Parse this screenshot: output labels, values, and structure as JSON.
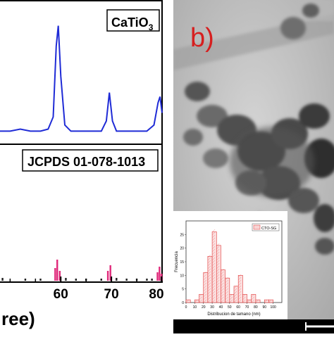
{
  "panel_a": {
    "top_label_base": "CaTiO",
    "top_label_sub": "3",
    "ref_label": "JCPDS 01-078-1013",
    "xlabel_fragment": "ree)"
  },
  "panel_b": {
    "label": "b)"
  },
  "chart_data": [
    {
      "type": "line",
      "name": "xrd-pattern",
      "x_range": [
        48,
        80
      ],
      "ticks": [
        60,
        70,
        80
      ],
      "x": [
        48,
        50,
        52,
        54,
        56,
        57.5,
        58.5,
        59.1,
        59.5,
        60.0,
        60.8,
        62,
        64,
        66,
        68,
        69.0,
        69.6,
        70.2,
        71,
        73,
        75,
        77,
        78.4,
        79.2,
        79.6,
        80
      ],
      "y": [
        3,
        3,
        4,
        3,
        3,
        4,
        10,
        45,
        55,
        30,
        6,
        3,
        3,
        3,
        3,
        8,
        22,
        8,
        3,
        3,
        3,
        3,
        6,
        17,
        20,
        12
      ],
      "ylim": [
        0,
        100
      ]
    },
    {
      "type": "bar",
      "name": "jcpds-reference",
      "x_range": [
        48,
        80
      ],
      "ticks": [
        60,
        70,
        80
      ],
      "series": [
        {
          "positions": [
            58.9,
            59.3,
            59.8
          ],
          "values": [
            18,
            30,
            14
          ],
          "color": "#e0287a"
        },
        {
          "positions": [
            69.3,
            69.8
          ],
          "values": [
            14,
            22
          ],
          "color": "#e0287a"
        },
        {
          "positions": [
            79.1,
            79.5,
            79.9
          ],
          "values": [
            12,
            20,
            10
          ],
          "color": "#e0287a"
        },
        {
          "positions": [
            48.5,
            53,
            56,
            61,
            63,
            65,
            68,
            71,
            73,
            75,
            77,
            78
          ],
          "values": [
            4,
            3,
            3,
            4,
            3,
            3,
            3,
            4,
            3,
            3,
            3,
            3
          ],
          "color": "#222222"
        }
      ],
      "ylim": [
        0,
        100
      ]
    },
    {
      "type": "bar",
      "name": "size-histogram",
      "xlabel": "Distribucion de tamano (nm)",
      "ylabel": "Frecuencia",
      "legend": "CTO-SG",
      "x_ticks": [
        0,
        10,
        20,
        30,
        40,
        50,
        60,
        70,
        80,
        90,
        100
      ],
      "y_ticks": [
        0,
        5,
        10,
        15,
        20,
        25
      ],
      "bin_left": [
        0,
        10,
        15,
        20,
        25,
        30,
        35,
        40,
        45,
        50,
        55,
        60,
        65,
        70,
        75,
        80,
        85,
        90,
        95,
        100
      ],
      "bin_width": 5,
      "values": [
        1,
        1,
        3,
        11,
        17,
        26,
        21,
        12,
        9,
        3,
        6,
        10,
        3,
        1,
        3,
        1,
        0,
        1,
        1,
        0
      ],
      "xlim": [
        0,
        110
      ],
      "ylim": [
        0,
        30
      ]
    }
  ]
}
